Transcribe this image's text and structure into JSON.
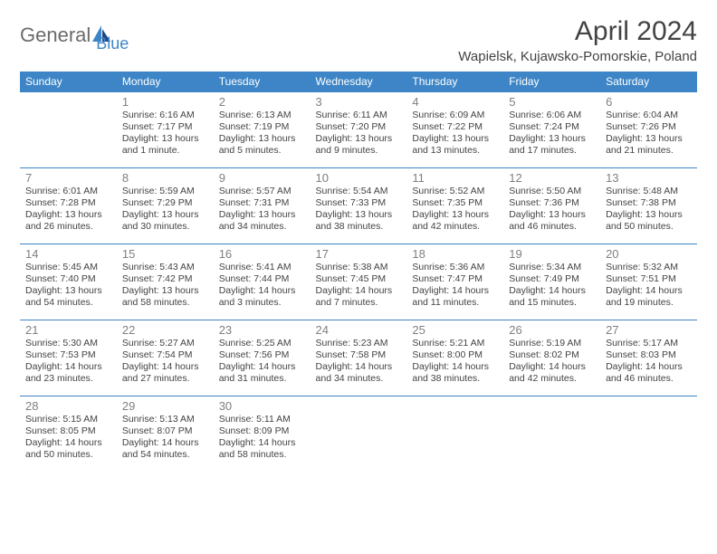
{
  "logo": {
    "text1": "General",
    "text2": "Blue"
  },
  "title": "April 2024",
  "subtitle": "Wapielsk, Kujawsko-Pomorskie, Poland",
  "colors": {
    "header_bg": "#3d85c6",
    "header_text": "#ffffff",
    "daynum": "#808080",
    "body_text": "#434343",
    "border": "#3d85c6",
    "logo_gray": "#6b6b6b",
    "logo_blue": "#3d85c6",
    "page_bg": "#ffffff"
  },
  "typography": {
    "title_size": 30,
    "subtitle_size": 15,
    "header_day_size": 12,
    "daynum_size": 13,
    "info_size": 10.5
  },
  "dayHeaders": [
    "Sunday",
    "Monday",
    "Tuesday",
    "Wednesday",
    "Thursday",
    "Friday",
    "Saturday"
  ],
  "weeks": [
    [
      null,
      {
        "n": "1",
        "sr": "Sunrise: 6:16 AM",
        "ss": "Sunset: 7:17 PM",
        "d1": "Daylight: 13 hours",
        "d2": "and 1 minute."
      },
      {
        "n": "2",
        "sr": "Sunrise: 6:13 AM",
        "ss": "Sunset: 7:19 PM",
        "d1": "Daylight: 13 hours",
        "d2": "and 5 minutes."
      },
      {
        "n": "3",
        "sr": "Sunrise: 6:11 AM",
        "ss": "Sunset: 7:20 PM",
        "d1": "Daylight: 13 hours",
        "d2": "and 9 minutes."
      },
      {
        "n": "4",
        "sr": "Sunrise: 6:09 AM",
        "ss": "Sunset: 7:22 PM",
        "d1": "Daylight: 13 hours",
        "d2": "and 13 minutes."
      },
      {
        "n": "5",
        "sr": "Sunrise: 6:06 AM",
        "ss": "Sunset: 7:24 PM",
        "d1": "Daylight: 13 hours",
        "d2": "and 17 minutes."
      },
      {
        "n": "6",
        "sr": "Sunrise: 6:04 AM",
        "ss": "Sunset: 7:26 PM",
        "d1": "Daylight: 13 hours",
        "d2": "and 21 minutes."
      }
    ],
    [
      {
        "n": "7",
        "sr": "Sunrise: 6:01 AM",
        "ss": "Sunset: 7:28 PM",
        "d1": "Daylight: 13 hours",
        "d2": "and 26 minutes."
      },
      {
        "n": "8",
        "sr": "Sunrise: 5:59 AM",
        "ss": "Sunset: 7:29 PM",
        "d1": "Daylight: 13 hours",
        "d2": "and 30 minutes."
      },
      {
        "n": "9",
        "sr": "Sunrise: 5:57 AM",
        "ss": "Sunset: 7:31 PM",
        "d1": "Daylight: 13 hours",
        "d2": "and 34 minutes."
      },
      {
        "n": "10",
        "sr": "Sunrise: 5:54 AM",
        "ss": "Sunset: 7:33 PM",
        "d1": "Daylight: 13 hours",
        "d2": "and 38 minutes."
      },
      {
        "n": "11",
        "sr": "Sunrise: 5:52 AM",
        "ss": "Sunset: 7:35 PM",
        "d1": "Daylight: 13 hours",
        "d2": "and 42 minutes."
      },
      {
        "n": "12",
        "sr": "Sunrise: 5:50 AM",
        "ss": "Sunset: 7:36 PM",
        "d1": "Daylight: 13 hours",
        "d2": "and 46 minutes."
      },
      {
        "n": "13",
        "sr": "Sunrise: 5:48 AM",
        "ss": "Sunset: 7:38 PM",
        "d1": "Daylight: 13 hours",
        "d2": "and 50 minutes."
      }
    ],
    [
      {
        "n": "14",
        "sr": "Sunrise: 5:45 AM",
        "ss": "Sunset: 7:40 PM",
        "d1": "Daylight: 13 hours",
        "d2": "and 54 minutes."
      },
      {
        "n": "15",
        "sr": "Sunrise: 5:43 AM",
        "ss": "Sunset: 7:42 PM",
        "d1": "Daylight: 13 hours",
        "d2": "and 58 minutes."
      },
      {
        "n": "16",
        "sr": "Sunrise: 5:41 AM",
        "ss": "Sunset: 7:44 PM",
        "d1": "Daylight: 14 hours",
        "d2": "and 3 minutes."
      },
      {
        "n": "17",
        "sr": "Sunrise: 5:38 AM",
        "ss": "Sunset: 7:45 PM",
        "d1": "Daylight: 14 hours",
        "d2": "and 7 minutes."
      },
      {
        "n": "18",
        "sr": "Sunrise: 5:36 AM",
        "ss": "Sunset: 7:47 PM",
        "d1": "Daylight: 14 hours",
        "d2": "and 11 minutes."
      },
      {
        "n": "19",
        "sr": "Sunrise: 5:34 AM",
        "ss": "Sunset: 7:49 PM",
        "d1": "Daylight: 14 hours",
        "d2": "and 15 minutes."
      },
      {
        "n": "20",
        "sr": "Sunrise: 5:32 AM",
        "ss": "Sunset: 7:51 PM",
        "d1": "Daylight: 14 hours",
        "d2": "and 19 minutes."
      }
    ],
    [
      {
        "n": "21",
        "sr": "Sunrise: 5:30 AM",
        "ss": "Sunset: 7:53 PM",
        "d1": "Daylight: 14 hours",
        "d2": "and 23 minutes."
      },
      {
        "n": "22",
        "sr": "Sunrise: 5:27 AM",
        "ss": "Sunset: 7:54 PM",
        "d1": "Daylight: 14 hours",
        "d2": "and 27 minutes."
      },
      {
        "n": "23",
        "sr": "Sunrise: 5:25 AM",
        "ss": "Sunset: 7:56 PM",
        "d1": "Daylight: 14 hours",
        "d2": "and 31 minutes."
      },
      {
        "n": "24",
        "sr": "Sunrise: 5:23 AM",
        "ss": "Sunset: 7:58 PM",
        "d1": "Daylight: 14 hours",
        "d2": "and 34 minutes."
      },
      {
        "n": "25",
        "sr": "Sunrise: 5:21 AM",
        "ss": "Sunset: 8:00 PM",
        "d1": "Daylight: 14 hours",
        "d2": "and 38 minutes."
      },
      {
        "n": "26",
        "sr": "Sunrise: 5:19 AM",
        "ss": "Sunset: 8:02 PM",
        "d1": "Daylight: 14 hours",
        "d2": "and 42 minutes."
      },
      {
        "n": "27",
        "sr": "Sunrise: 5:17 AM",
        "ss": "Sunset: 8:03 PM",
        "d1": "Daylight: 14 hours",
        "d2": "and 46 minutes."
      }
    ],
    [
      {
        "n": "28",
        "sr": "Sunrise: 5:15 AM",
        "ss": "Sunset: 8:05 PM",
        "d1": "Daylight: 14 hours",
        "d2": "and 50 minutes."
      },
      {
        "n": "29",
        "sr": "Sunrise: 5:13 AM",
        "ss": "Sunset: 8:07 PM",
        "d1": "Daylight: 14 hours",
        "d2": "and 54 minutes."
      },
      {
        "n": "30",
        "sr": "Sunrise: 5:11 AM",
        "ss": "Sunset: 8:09 PM",
        "d1": "Daylight: 14 hours",
        "d2": "and 58 minutes."
      },
      null,
      null,
      null,
      null
    ]
  ]
}
